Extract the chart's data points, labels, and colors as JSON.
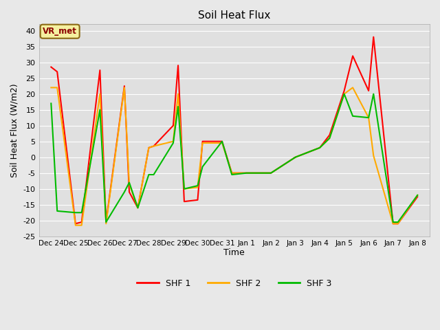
{
  "title": "Soil Heat Flux",
  "xlabel": "Time",
  "ylabel": "Soil Heat Flux (W/m2)",
  "ylim": [
    -25,
    42
  ],
  "yticks": [
    -25,
    -20,
    -15,
    -10,
    -5,
    0,
    5,
    10,
    15,
    20,
    25,
    30,
    35,
    40
  ],
  "annotation": "VR_met",
  "fig_facecolor": "#e8e8e8",
  "ax_facecolor": "#e0e0e0",
  "x_labels": [
    "Dec 24",
    "Dec 25",
    "Dec 26",
    "Dec 27",
    "Dec 28",
    "Dec 29",
    "Dec 30",
    "Dec 31",
    "Jan 1",
    "Jan 2",
    "Jan 3",
    "Jan 4",
    "Jan 5",
    "Jan 6",
    "Jan 7",
    "Jan 8"
  ],
  "shf1_color": "#ff0000",
  "shf2_color": "#ffaa00",
  "shf3_color": "#00bb00",
  "shf1_x": [
    0,
    0.25,
    1,
    1.25,
    2,
    2.25,
    3,
    3.2,
    3.55,
    4,
    4.2,
    5,
    5.2,
    5.45,
    6,
    6.2,
    7,
    7.4,
    8,
    9,
    10,
    11,
    11.4,
    12,
    12.35,
    13,
    13.2,
    14,
    14.2,
    15
  ],
  "shf1_y": [
    28.5,
    27.0,
    -21.0,
    -20.5,
    27.5,
    -20.5,
    22.5,
    -11.0,
    -16.0,
    3.0,
    3.5,
    10.0,
    29.0,
    -14.0,
    -13.5,
    5.0,
    5.0,
    -5.0,
    -5.0,
    -5.0,
    0.0,
    3.0,
    7.0,
    21.0,
    32.0,
    21.0,
    38.0,
    -21.0,
    -21.0,
    -12.5
  ],
  "shf2_x": [
    0,
    0.25,
    1,
    1.25,
    2,
    2.25,
    3,
    3.2,
    3.55,
    4,
    4.2,
    5,
    5.2,
    5.45,
    6,
    6.2,
    7,
    7.4,
    8,
    9,
    10,
    11,
    11.4,
    12,
    12.35,
    13,
    13.2,
    14,
    14.2,
    15
  ],
  "shf2_y": [
    22.0,
    22.0,
    -21.5,
    -21.5,
    20.0,
    -21.0,
    22.0,
    -8.5,
    -16.0,
    3.0,
    3.5,
    5.0,
    20.0,
    -10.0,
    -9.5,
    4.5,
    4.5,
    -5.0,
    -5.0,
    -5.0,
    0.0,
    3.0,
    6.0,
    20.0,
    22.0,
    12.5,
    0.5,
    -21.0,
    -21.0,
    -12.0
  ],
  "shf3_x": [
    0,
    0.25,
    1,
    1.25,
    2,
    2.25,
    3,
    3.2,
    3.55,
    4,
    4.2,
    5,
    5.2,
    5.45,
    6,
    6.2,
    7,
    7.4,
    8,
    9,
    10,
    11,
    11.4,
    12,
    12.35,
    13,
    13.2,
    14,
    14.2,
    15
  ],
  "shf3_y": [
    17.0,
    -17.0,
    -17.5,
    -17.5,
    15.0,
    -20.5,
    -11.0,
    -8.0,
    -16.0,
    -5.5,
    -5.5,
    4.5,
    16.0,
    -10.0,
    -9.0,
    -3.0,
    5.0,
    -5.5,
    -5.0,
    -5.0,
    0.0,
    3.0,
    6.0,
    20.0,
    13.0,
    12.5,
    20.0,
    -20.5,
    -20.5,
    -12.0
  ]
}
